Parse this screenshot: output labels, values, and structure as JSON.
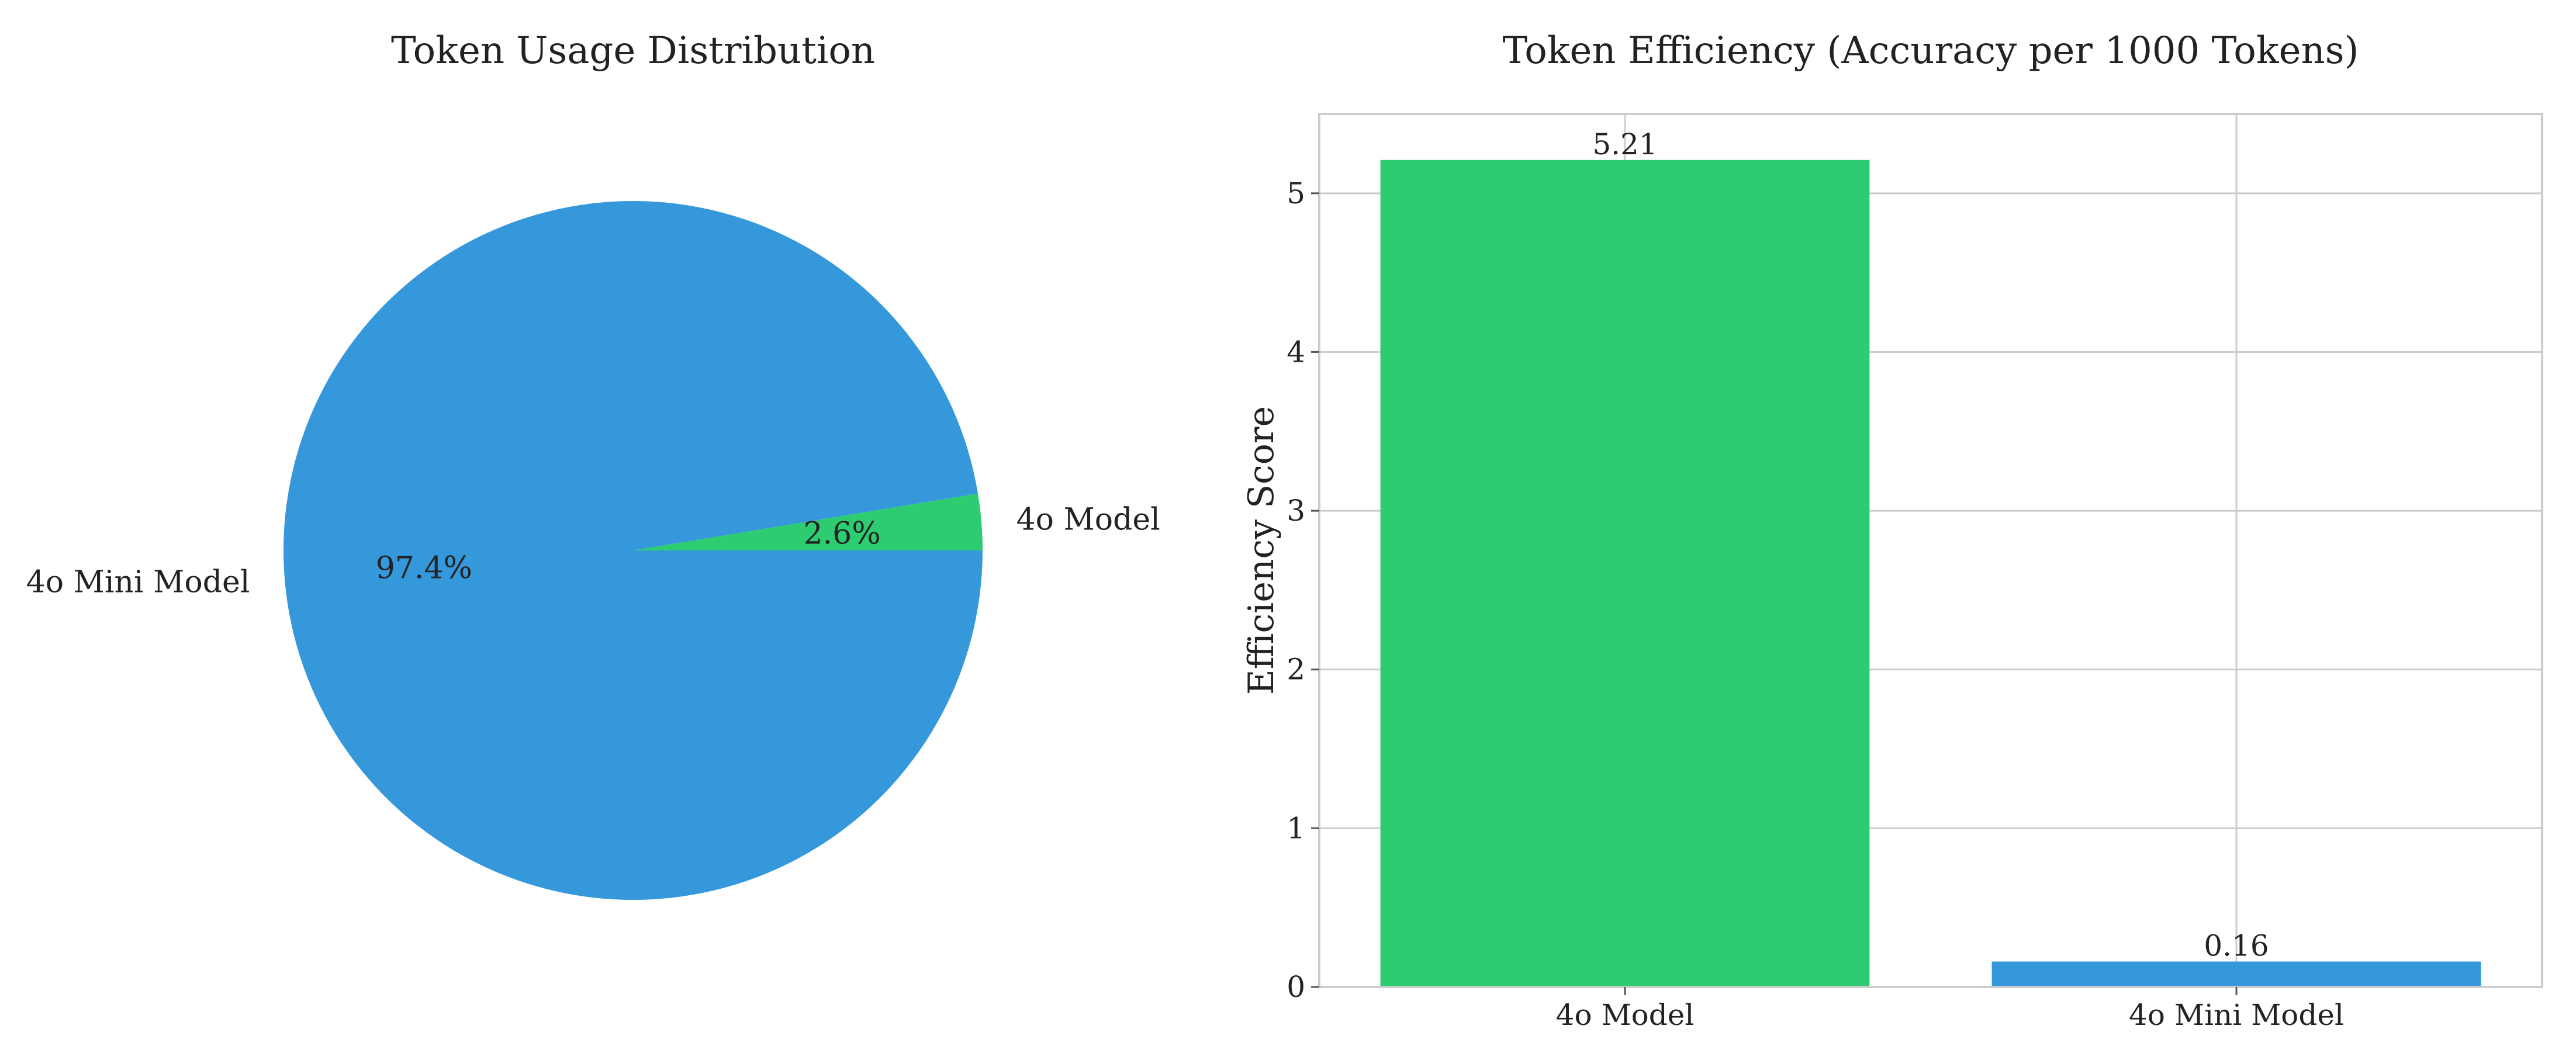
{
  "chart_data": [
    {
      "type": "pie",
      "title": "Token Usage Distribution",
      "labels": [
        "4o Model",
        "4o Mini Model"
      ],
      "values": [
        2.6,
        97.4
      ],
      "percent_labels": [
        "2.6%",
        "97.4%"
      ],
      "colors": [
        "#2ecc71",
        "#3498db"
      ],
      "start_angle_deg": 0,
      "direction": "counterclockwise"
    },
    {
      "type": "bar",
      "title": "Token Efficiency (Accuracy per 1000 Tokens)",
      "categories": [
        "4o Model",
        "4o Mini Model"
      ],
      "values": [
        5.21,
        0.16
      ],
      "value_labels": [
        "5.21",
        "0.16"
      ],
      "colors": [
        "#2ecc71",
        "#3498db"
      ],
      "xlabel": "",
      "ylabel": "Efficiency Score",
      "ylim": [
        0,
        5.5
      ],
      "yticks": [
        0,
        1,
        2,
        3,
        4,
        5
      ],
      "grid": true
    }
  ]
}
